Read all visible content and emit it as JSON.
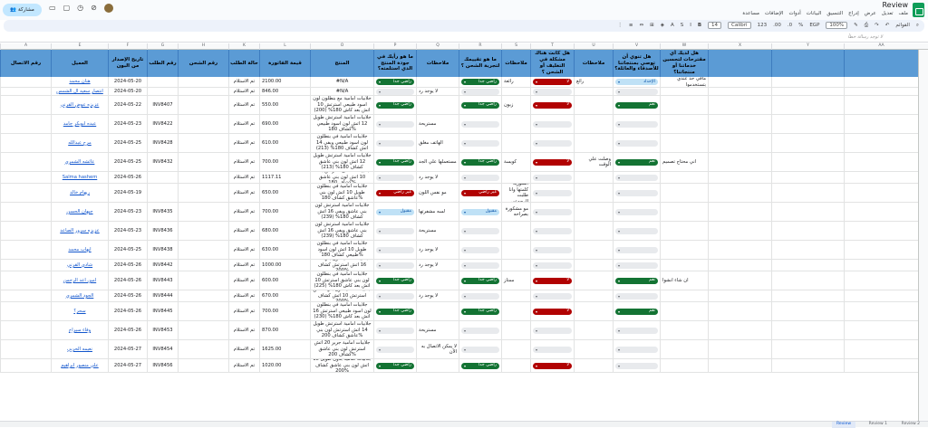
{
  "app": {
    "title": "Review",
    "share_label": "مشاركة"
  },
  "menu": [
    "ملف",
    "تعديل",
    "عرض",
    "إدراج",
    "التنسيق",
    "البيانات",
    "أدوات",
    "الإضافات",
    "مساعدة"
  ],
  "toolbar": {
    "search": "القوائم",
    "zoom": "100%",
    "currency": "EGP",
    "percent": "%",
    "decimal": ".0",
    ".00": ".00",
    "format": "123",
    "font": "Calibri",
    "size": "14",
    "bold": "B"
  },
  "formula": {
    "fx": "لا توجد رسالة خطأ",
    "namebox": ""
  },
  "columns": [
    "A",
    "E",
    "F",
    "G",
    "H",
    "K",
    "L",
    "M",
    "O",
    "P",
    "Q",
    "R",
    "S",
    "T",
    "U",
    "V",
    "W",
    "X",
    "Y",
    "AA"
  ],
  "headers": {
    "A": "رقم الاتصال",
    "E": "العميل",
    "F": "تاريخ الإصدار من البون",
    "G": "رقم الطلب",
    "H": "رقم الشحن",
    "K": "حالة الطلب",
    "L": "قيمة الفاتورة",
    "O": "المنتج",
    "P": "ما هو رأيك في جودة المنتج الذي استلمته؟",
    "Q": "ملاحظات",
    "R": "ما هو تقييمك لتجربة الشحن ؟",
    "S": "ملاحظات",
    "T": "هل كانت هناك مشكلة في التغليف أو الشحن ؟",
    "U": "ملاحظات",
    "V": "هل تنوي أن توصي بمنتجاتنا للأصدقاء والعائلة؟",
    "W": "هل لديك أي مقترحات لتحسين خدماتنا أو منتجاتنا؟",
    "X": "",
    "Y": "",
    "AA": ""
  },
  "rows": [
    {
      "E": "هنان محمد",
      "F": "2024-05-20",
      "G": "",
      "K": "تم الاستلام",
      "L": "2100.00",
      "O": "#N/A",
      "P": "راضي جدا",
      "Q": "",
      "R": "راضي جدا",
      "S": "رائعة",
      "T": "لا",
      "U": "رائع",
      "V": "الإحداد",
      "W": "مافي حد عندي بتستخدموا"
    },
    {
      "E": "انتصار سعيد ال الشمس",
      "F": "2024-05-20",
      "G": "",
      "K": "تم الاستلام",
      "L": "846.00",
      "O": "#N/A",
      "P": "",
      "Q": "لا يوجد رد",
      "R": "",
      "S": "",
      "T": "",
      "U": "",
      "V": "",
      "W": ""
    },
    {
      "E": "عزيزه عوض القرني",
      "F": "2024-05-22",
      "G": "INV8407",
      "K": "تم الاستلام",
      "L": "550.00",
      "O": "جلابيات امامية مع بنطلون لون اسود طبيعي استرتش 10 اتش بعد كاش 180% (200)",
      "P": "راضي جدا",
      "Q": "",
      "R": "راضي جدا",
      "S": "زبون",
      "T": "لا",
      "U": "",
      "V": "نعم",
      "W": ""
    },
    {
      "E": "عبده ابوبكر جامد",
      "F": "2024-05-23",
      "G": "INV8422",
      "K": "تم الاستلام",
      "L": "690.00",
      "O": "جلابيات امامية استرتش طويل 12 اتش لون اسود طبيعي كشاف 180%",
      "P": "",
      "Q": "مستريحة",
      "R": "",
      "S": "",
      "T": "",
      "U": "",
      "V": "",
      "W": ""
    },
    {
      "E": "مرح عبدالله",
      "F": "2024-05-25",
      "G": "INV8428",
      "K": "تم الاستلام",
      "L": "610.00",
      "O": "جلابيات امامية في بنطلون لون اسود طبيعي ويفي 14 اتش كشاف 180% (213)",
      "P": "",
      "Q": "الهاتف مغلق",
      "R": "",
      "S": "",
      "T": "",
      "U": "",
      "V": "",
      "W": ""
    },
    {
      "E": "عائشه الشمري",
      "F": "2024-05-25",
      "G": "INV8432",
      "K": "تم الاستلام",
      "L": "700.00",
      "O": "جلابيات امامية استرتش طويل 12 اتش لون بني عاشق كشاف 180% (213)",
      "P": "راضي جدا",
      "Q": "مستعملها علي الجد",
      "R": "راضي جدا",
      "S": "كويسة",
      "T": "لا",
      "U": "وصلت علي الوقت",
      "V": "نعم",
      "W": "اني محتاج تصميم"
    },
    {
      "E": "Salma hashem",
      "F": "2024-05-26",
      "G": "",
      "K": "تم الاستلام",
      "L": "1117.11",
      "O": "جلابيات كشاف سترتش بحت 10 اتش لون بني عاشق كشاف 180%",
      "P": "",
      "Q": "لا يوجد رد",
      "R": "",
      "S": "",
      "T": "",
      "U": "",
      "V": "",
      "W": ""
    },
    {
      "E": "ريهام خالد",
      "F": "2024-05-19",
      "G": "",
      "K": "تم الاستلام",
      "L": "650.00",
      "O": "جلابيات امامية في بنطلون طويل 10 اتش لون بني عاشق كشاف 180%",
      "P": "غير راضي",
      "Q": "مو نفس اللون",
      "R": "غير راضي",
      "S": "المتورية كلمتها وانا طلبت الرجوعي",
      "T": "",
      "U": "",
      "V": "",
      "W": ""
    },
    {
      "E": "جيهان الحسن",
      "F": "2024-05-23",
      "G": "INV8435",
      "K": "تم الاستلام",
      "L": "700.00",
      "O": "جلابيات امامية استرتش لون بني عاشق ويفي 16 اتش كشاف 180% (239)",
      "P": "مقبول",
      "Q": "لسه مشفرتها",
      "R": "مقبول",
      "S": "مو مشكورة بصراحه",
      "T": "",
      "U": "",
      "V": "",
      "W": ""
    },
    {
      "E": "عزيزه سرور الصاعد",
      "F": "2024-05-23",
      "G": "INV8436",
      "K": "تم الاستلام",
      "L": "680.00",
      "O": "جلابيات امامية استرتش لون بني عاشق ويفي 16 اتش كشاف 180% (239)",
      "P": "",
      "Q": "مستريحة",
      "R": "",
      "S": "",
      "T": "",
      "U": "",
      "V": "",
      "W": ""
    },
    {
      "E": "ايهاب محمد",
      "F": "2024-05-25",
      "G": "INV8438",
      "K": "تم الاستلام",
      "L": "630.00",
      "O": "جلابيات امامية في بنطلون طويل 10 اتش لون اسود طبيعي كشاف 180%",
      "P": "",
      "Q": "لا يوجد رد",
      "R": "",
      "S": "",
      "T": "",
      "U": "",
      "V": "",
      "W": ""
    },
    {
      "E": "شادي القرني",
      "F": "2024-05-26",
      "G": "INV8442",
      "K": "تم الاستلام",
      "L": "1000.00",
      "O": "HD جلابيات امامية لون بني 16 اتش استرتش كشاف 200%",
      "P": "",
      "Q": "لا يوجد رد",
      "R": "",
      "S": "",
      "T": "",
      "U": "",
      "V": "",
      "W": ""
    },
    {
      "E": "امين اعد الرحمن",
      "F": "2024-05-26",
      "G": "INV8443",
      "K": "تم الاستلام",
      "L": "600.00",
      "O": "جلابيات امامية في بنطلون لون بني عاشق استرتش 10 اتش بعد كاش 180% (225)",
      "P": "راضي جدا",
      "Q": "",
      "R": "راضي جدا",
      "S": "ممتاز",
      "T": "لا",
      "U": "",
      "V": "نعم",
      "W": "ان شاء انشوا"
    },
    {
      "E": "الجود الشمري",
      "F": "2024-05-26",
      "G": "INV8444",
      "K": "تم الاستلام",
      "L": "670.00",
      "O": "جلابيات امامية لون بني عاشق استرتش 10 اتش كشاف 200%",
      "P": "",
      "Q": "لا يوجد رد",
      "R": "",
      "S": "",
      "T": "",
      "U": "",
      "V": "",
      "W": ""
    },
    {
      "E": "سحر؟",
      "F": "2024-05-26",
      "G": "INV8445",
      "K": "تم الاستلام",
      "L": "700.00",
      "O": "جلابيات امامية في بنطلون لون اسود طبيعي استرتش 16 اتش بعد كاش 180% (230)",
      "P": "راضي جدا",
      "Q": "",
      "R": "راضي جدا",
      "S": "",
      "T": "لا",
      "U": "",
      "V": "نعم",
      "W": ""
    },
    {
      "E": "وفاء سيراج",
      "F": "2024-05-26",
      "G": "INV8453",
      "K": "تم الاستلام",
      "L": "870.00",
      "O": "جلابيات امامية استرتش طويل 14 اتش استرتش لون بني عاشق كشاف 200%",
      "P": "",
      "Q": "مستريحة",
      "R": "",
      "S": "",
      "T": "",
      "U": "",
      "V": "",
      "W": ""
    },
    {
      "E": "نعيمه الحربي",
      "F": "2024-05-27",
      "G": "INV8454",
      "K": "تم الاستلام",
      "L": "1625.00",
      "O": "جلابيات امامية جرير 20 اتش استرتش لون بني عاشق كشاف 200%",
      "P": "",
      "Q": "لا يمكن الاتصال به الآن",
      "R": "",
      "S": "",
      "T": "",
      "U": "",
      "V": "",
      "W": ""
    },
    {
      "E": "علي منصور ابراهيم",
      "F": "2024-05-27",
      "G": "INV8456",
      "K": "تم الاستلام",
      "L": "1020.00",
      "O": "جلابيات امامية بدون طويل 18 اتش لون بني عاشق كشاف 200%",
      "P": "راضي جدا",
      "Q": "",
      "R": "راضي جدا",
      "S": "",
      "T": "لا",
      "U": "",
      "V": "",
      "W": ""
    }
  ],
  "tabs": [
    "Review",
    "Review 1",
    "Review 2"
  ],
  "colors": {
    "header_blue": "#5b9bd5",
    "chip_green": "#137333",
    "chip_red": "#b10202",
    "chip_blue": "#bfe1f6"
  }
}
